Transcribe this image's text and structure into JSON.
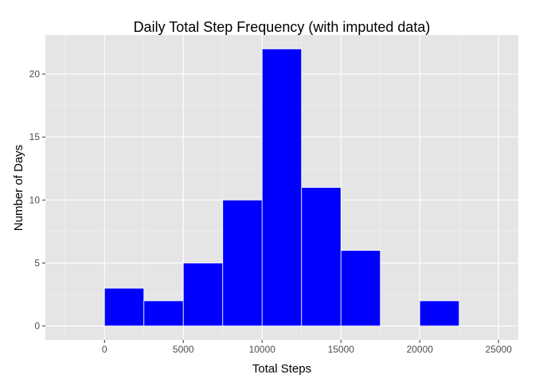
{
  "chart_data": {
    "type": "bar",
    "title": "Daily Total Step Frequency (with imputed data)",
    "xlabel": "Total Steps",
    "ylabel": "Number of Days",
    "bins": [
      {
        "x0": 0,
        "x1": 2500,
        "count": 3
      },
      {
        "x0": 2500,
        "x1": 5000,
        "count": 2
      },
      {
        "x0": 5000,
        "x1": 7500,
        "count": 5
      },
      {
        "x0": 7500,
        "x1": 10000,
        "count": 10
      },
      {
        "x0": 10000,
        "x1": 12500,
        "count": 22
      },
      {
        "x0": 12500,
        "x1": 15000,
        "count": 11
      },
      {
        "x0": 15000,
        "x1": 17500,
        "count": 6
      },
      {
        "x0": 17500,
        "x1": 20000,
        "count": 0
      },
      {
        "x0": 20000,
        "x1": 22500,
        "count": 2
      }
    ],
    "xlim": [
      -3750,
      26250
    ],
    "ylim": [
      -1.1,
      23.1
    ],
    "xticks": [
      0,
      5000,
      10000,
      15000,
      20000,
      25000
    ],
    "yticks": [
      0,
      5,
      10,
      15,
      20
    ],
    "grid": true,
    "bar_color": "#0000ff",
    "bar_edge_color": "#ffffff",
    "panel_color": "#e5e5e5",
    "grid_color": "#ffffff"
  }
}
